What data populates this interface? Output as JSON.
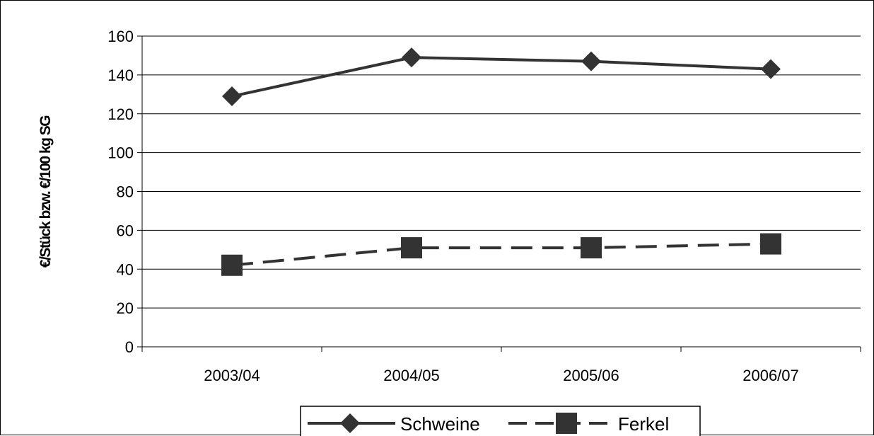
{
  "chart_data": {
    "type": "line",
    "title": "",
    "xlabel": "",
    "ylabel": "€/Stück bzw. €/100 kg SG",
    "categories": [
      "2003/04",
      "2004/05",
      "2005/06",
      "2006/07"
    ],
    "ylim": [
      0,
      160
    ],
    "yticks": [
      0,
      20,
      40,
      60,
      80,
      100,
      120,
      140,
      160
    ],
    "grid": true,
    "legend_position": "bottom",
    "series": [
      {
        "name": "Schweine",
        "values": [
          129,
          149,
          147,
          143
        ],
        "marker": "diamond",
        "line_style": "solid",
        "color": "#333333"
      },
      {
        "name": "Ferkel",
        "values": [
          42,
          51,
          51,
          53
        ],
        "marker": "square",
        "line_style": "dashed",
        "color": "#333333"
      }
    ]
  }
}
